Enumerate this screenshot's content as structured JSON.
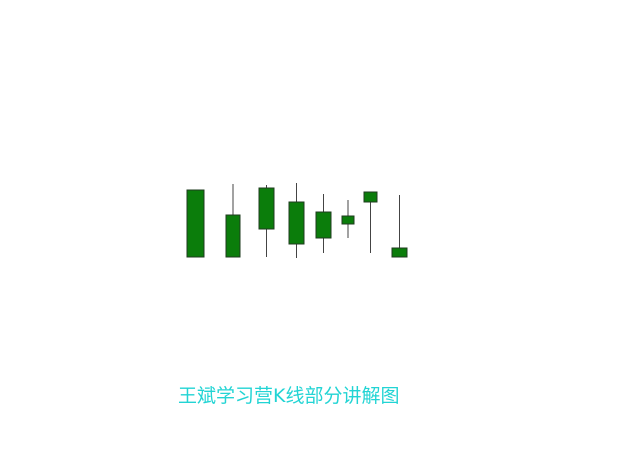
{
  "slide": {
    "caption": "王斌学习营K线部分讲解图",
    "caption_color": "#22d4d4",
    "background": "#ffffff"
  },
  "chart_data": {
    "type": "candlestick",
    "body_color": "#0b7d0b",
    "body_border_color": "#1f3b1f",
    "wick_color": "#444444",
    "candles": [
      {
        "open": 70,
        "high": 70,
        "low": 3,
        "close": 3
      },
      {
        "open": 45,
        "high": 76,
        "low": 3,
        "close": 3
      },
      {
        "open": 72,
        "high": 75,
        "low": 3,
        "close": 31
      },
      {
        "open": 58,
        "high": 77,
        "low": 2,
        "close": 16
      },
      {
        "open": 48,
        "high": 66,
        "low": 7,
        "close": 22
      },
      {
        "open": 44,
        "high": 60,
        "low": 22,
        "close": 36
      },
      {
        "open": 68,
        "high": 68,
        "low": 7,
        "close": 58
      },
      {
        "open": 12,
        "high": 65,
        "low": 3,
        "close": 3
      }
    ]
  }
}
